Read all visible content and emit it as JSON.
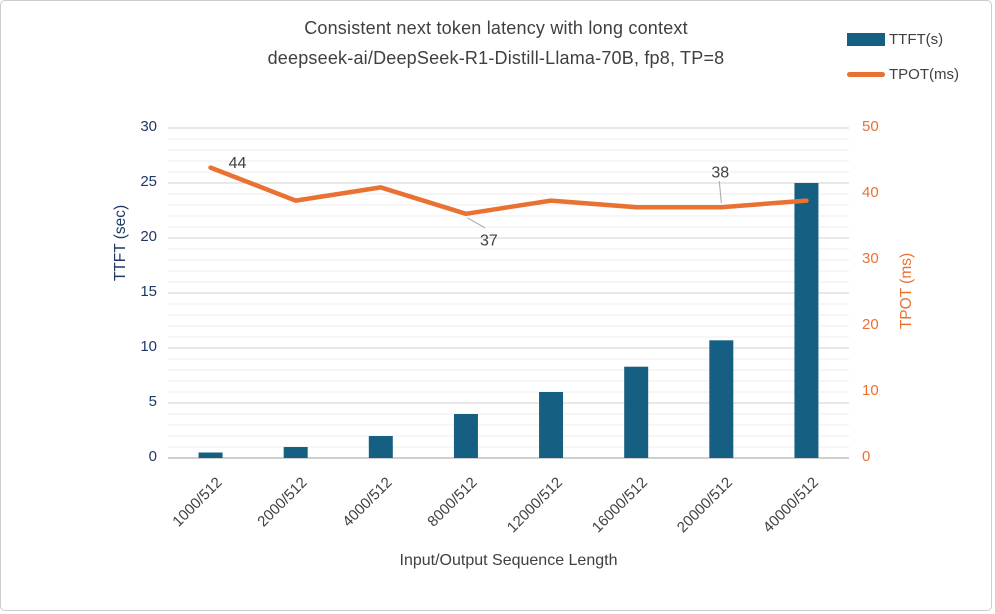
{
  "window": {
    "background": "#ffffff",
    "border_color": "#cccccc"
  },
  "chart_data": {
    "type": "bar",
    "subtype": "combo-bar-line-dual-axis",
    "title_lines": [
      "Consistent next token latency with long context",
      "deepseek-ai/DeepSeek-R1-Distill-Llama-70B, fp8, TP=8"
    ],
    "categories": [
      "1000/512",
      "2000/512",
      "4000/512",
      "8000/512",
      "12000/512",
      "16000/512",
      "20000/512",
      "40000/512"
    ],
    "series": [
      {
        "name": "TTFT(s)",
        "type": "bar",
        "axis": "left",
        "color": "#156082",
        "values": [
          0.5,
          1,
          2,
          4,
          6,
          8.3,
          10.7,
          25
        ]
      },
      {
        "name": "TPOT(ms)",
        "type": "line",
        "axis": "right",
        "color": "#E97132",
        "values": [
          44,
          39,
          41,
          37,
          39,
          38,
          38,
          39
        ]
      }
    ],
    "data_labels": [
      {
        "series": "TPOT(ms)",
        "index": 0,
        "text": "44"
      },
      {
        "series": "TPOT(ms)",
        "index": 3,
        "text": "37"
      },
      {
        "series": "TPOT(ms)",
        "index": 6,
        "text": "38"
      }
    ],
    "xlabel": "Input/Output Sequence Length",
    "left_axis": {
      "label": "TTFT (sec)",
      "min": 0,
      "max": 30,
      "tick_step": 5,
      "ticks": [
        0,
        5,
        10,
        15,
        20,
        25,
        30
      ],
      "color": "#1F3864"
    },
    "right_axis": {
      "label": "TPOT (ms)",
      "min": 0,
      "max": 50,
      "tick_step": 10,
      "ticks": [
        0,
        10,
        20,
        30,
        40,
        50
      ],
      "color": "#E97132"
    },
    "grid": {
      "minor_step": 1,
      "major_step": 5,
      "minor_color": "#ececec",
      "major_color": "#d2d2d2",
      "axis_line_color": "#bfbfbf",
      "leader_line_color": "#a6a6a6"
    },
    "legend_position": "top-right",
    "text_color": "#404040"
  }
}
